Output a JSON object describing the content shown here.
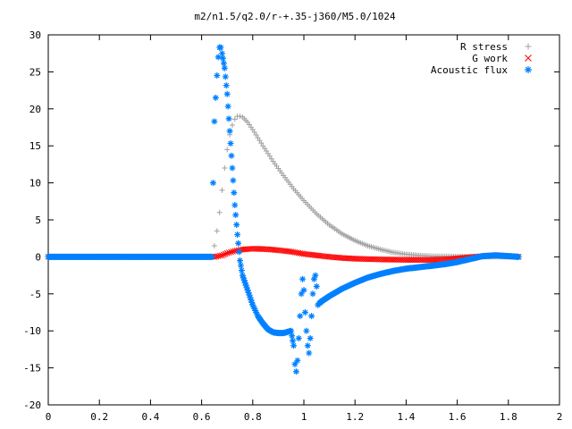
{
  "chart_data": {
    "type": "scatter",
    "title": "m2/n1.5/q2.0/r-+.35-j360/M5.0/1024",
    "xlabel": "",
    "ylabel": "",
    "xlim": [
      0,
      2
    ],
    "ylim": [
      -20,
      30
    ],
    "x_ticks": [
      "0",
      "0.2",
      "0.4",
      "0.6",
      "0.8",
      "1",
      "1.2",
      "1.4",
      "1.6",
      "1.8",
      "2"
    ],
    "y_ticks": [
      "30",
      "25",
      "20",
      "15",
      "10",
      "5",
      "0",
      "-5",
      "-10",
      "-15",
      "-20"
    ],
    "grid": false,
    "legend_position": "top-right",
    "series": [
      {
        "name": "R stress",
        "marker": "plus",
        "color": "#a0a0a0",
        "points": [
          [
            0.0,
            0
          ],
          [
            0.1,
            0
          ],
          [
            0.2,
            0
          ],
          [
            0.3,
            0
          ],
          [
            0.4,
            0
          ],
          [
            0.5,
            0
          ],
          [
            0.6,
            0
          ],
          [
            0.64,
            0
          ],
          [
            0.65,
            1.5
          ],
          [
            0.66,
            3.5
          ],
          [
            0.67,
            6
          ],
          [
            0.68,
            9
          ],
          [
            0.69,
            12
          ],
          [
            0.7,
            14.5
          ],
          [
            0.71,
            16.5
          ],
          [
            0.72,
            17.8
          ],
          [
            0.73,
            18.6
          ],
          [
            0.74,
            19.0
          ],
          [
            0.75,
            19.0
          ],
          [
            0.76,
            18.9
          ],
          [
            0.78,
            18.2
          ],
          [
            0.8,
            17.2
          ],
          [
            0.84,
            15.0
          ],
          [
            0.88,
            12.9
          ],
          [
            0.92,
            11.0
          ],
          [
            0.96,
            9.2
          ],
          [
            1.0,
            7.6
          ],
          [
            1.05,
            5.8
          ],
          [
            1.1,
            4.3
          ],
          [
            1.15,
            3.1
          ],
          [
            1.2,
            2.2
          ],
          [
            1.25,
            1.5
          ],
          [
            1.3,
            1.0
          ],
          [
            1.35,
            0.6
          ],
          [
            1.4,
            0.35
          ],
          [
            1.45,
            0.2
          ],
          [
            1.5,
            0.1
          ],
          [
            1.6,
            0.05
          ],
          [
            1.7,
            0.02
          ],
          [
            1.84,
            0
          ]
        ]
      },
      {
        "name": "G work",
        "marker": "cross",
        "color": "#ff0000",
        "points": [
          [
            0.0,
            0
          ],
          [
            0.2,
            0
          ],
          [
            0.4,
            0
          ],
          [
            0.6,
            0
          ],
          [
            0.65,
            0
          ],
          [
            0.68,
            0.2
          ],
          [
            0.7,
            0.5
          ],
          [
            0.73,
            0.8
          ],
          [
            0.76,
            1.0
          ],
          [
            0.8,
            1.1
          ],
          [
            0.85,
            1.05
          ],
          [
            0.9,
            0.9
          ],
          [
            0.95,
            0.7
          ],
          [
            1.0,
            0.4
          ],
          [
            1.05,
            0.2
          ],
          [
            1.1,
            0
          ],
          [
            1.15,
            -0.15
          ],
          [
            1.2,
            -0.25
          ],
          [
            1.3,
            -0.35
          ],
          [
            1.4,
            -0.4
          ],
          [
            1.5,
            -0.4
          ],
          [
            1.55,
            -0.35
          ],
          [
            1.6,
            -0.2
          ],
          [
            1.65,
            -0.05
          ],
          [
            1.7,
            0.1
          ],
          [
            1.75,
            0.2
          ],
          [
            1.8,
            0.1
          ],
          [
            1.84,
            0
          ]
        ]
      },
      {
        "name": "Acoustic flux",
        "marker": "star",
        "color": "#0080ff",
        "points": [
          [
            0.0,
            0
          ],
          [
            0.2,
            0
          ],
          [
            0.4,
            0
          ],
          [
            0.6,
            0
          ],
          [
            0.64,
            0
          ],
          [
            0.645,
            10
          ],
          [
            0.65,
            18.3
          ],
          [
            0.655,
            21.5
          ],
          [
            0.66,
            24.5
          ],
          [
            0.665,
            27
          ],
          [
            0.67,
            28.3
          ],
          [
            0.675,
            28.3
          ],
          [
            0.68,
            27.5
          ],
          [
            0.69,
            25.5
          ],
          [
            0.7,
            22
          ],
          [
            0.71,
            17
          ],
          [
            0.72,
            12
          ],
          [
            0.73,
            7
          ],
          [
            0.74,
            3
          ],
          [
            0.75,
            -0.5
          ],
          [
            0.76,
            -2.5
          ],
          [
            0.78,
            -4.5
          ],
          [
            0.8,
            -6.5
          ],
          [
            0.82,
            -8
          ],
          [
            0.84,
            -9
          ],
          [
            0.86,
            -9.8
          ],
          [
            0.88,
            -10.2
          ],
          [
            0.9,
            -10.3
          ],
          [
            0.92,
            -10.3
          ],
          [
            0.94,
            -10.1
          ],
          [
            0.95,
            -10
          ],
          [
            0.96,
            -12
          ],
          [
            0.965,
            -14.5
          ],
          [
            0.97,
            -15.5
          ],
          [
            0.975,
            -14
          ],
          [
            0.98,
            -11
          ],
          [
            0.985,
            -8
          ],
          [
            0.99,
            -5
          ],
          [
            0.995,
            -3
          ],
          [
            1.0,
            -4.5
          ],
          [
            1.005,
            -7.5
          ],
          [
            1.01,
            -10
          ],
          [
            1.015,
            -12
          ],
          [
            1.02,
            -13
          ],
          [
            1.025,
            -11
          ],
          [
            1.03,
            -8
          ],
          [
            1.035,
            -5
          ],
          [
            1.04,
            -3
          ],
          [
            1.045,
            -2.5
          ],
          [
            1.05,
            -4
          ],
          [
            1.055,
            -6.5
          ],
          [
            1.06,
            -6.3
          ],
          [
            1.07,
            -6.0
          ],
          [
            1.1,
            -5.3
          ],
          [
            1.15,
            -4.3
          ],
          [
            1.2,
            -3.5
          ],
          [
            1.25,
            -2.8
          ],
          [
            1.3,
            -2.3
          ],
          [
            1.35,
            -1.9
          ],
          [
            1.4,
            -1.6
          ],
          [
            1.45,
            -1.4
          ],
          [
            1.5,
            -1.2
          ],
          [
            1.55,
            -1.0
          ],
          [
            1.6,
            -0.7
          ],
          [
            1.65,
            -0.3
          ],
          [
            1.7,
            0.1
          ],
          [
            1.75,
            0.2
          ],
          [
            1.8,
            0.1
          ],
          [
            1.84,
            0
          ]
        ]
      }
    ]
  }
}
